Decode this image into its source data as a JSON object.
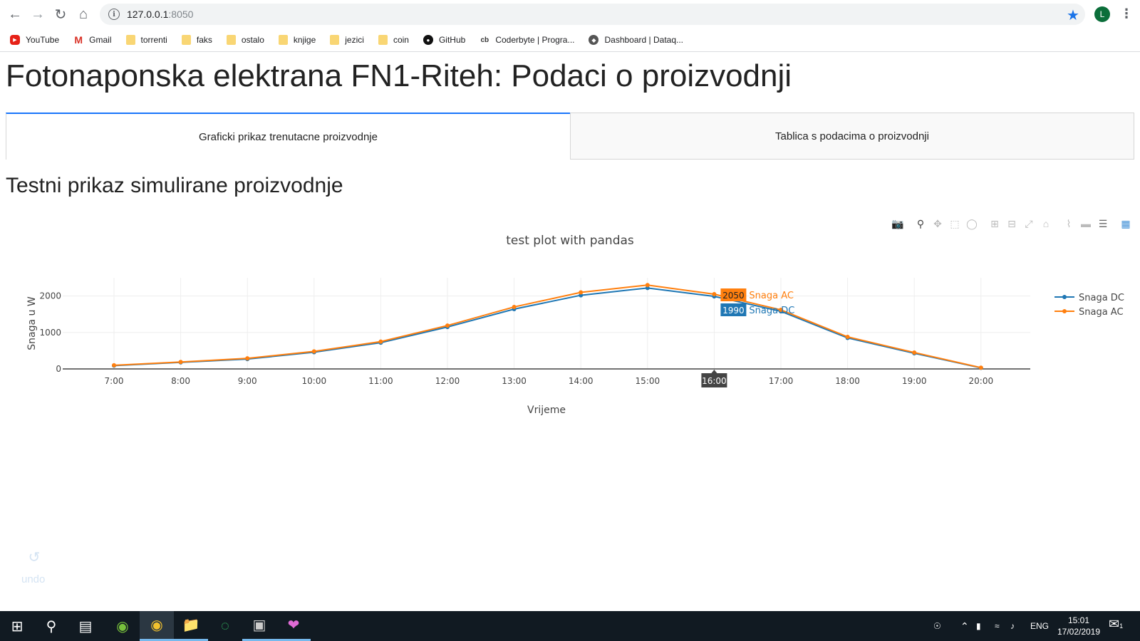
{
  "browser": {
    "url_host": "127.0.0.1",
    "url_port": ":8050",
    "avatar_letter": "L",
    "bookmarks": [
      {
        "label": "YouTube",
        "icon": "youtube-icon"
      },
      {
        "label": "Gmail",
        "icon": "gmail-icon"
      },
      {
        "label": "torrenti",
        "icon": "folder-icon"
      },
      {
        "label": "faks",
        "icon": "folder-icon"
      },
      {
        "label": "ostalo",
        "icon": "folder-icon"
      },
      {
        "label": "knjige",
        "icon": "folder-icon"
      },
      {
        "label": "jezici",
        "icon": "folder-icon"
      },
      {
        "label": "coin",
        "icon": "folder-icon"
      },
      {
        "label": "GitHub",
        "icon": "github-icon"
      },
      {
        "label": "Coderbyte | Progra...",
        "icon": "coderbyte-icon"
      },
      {
        "label": "Dashboard | Dataq...",
        "icon": "dataquest-icon"
      }
    ]
  },
  "page": {
    "title": "Fotonaponska elektrana FN1-Riteh: Podaci o proizvodnji",
    "tabs": [
      {
        "label": "Graficki prikaz trenutacne proizvodnje",
        "active": true
      },
      {
        "label": "Tablica s podacima o proizvodnji",
        "active": false
      }
    ],
    "section_title": "Testni prikaz simulirane proizvodnje",
    "undo_label": "undo"
  },
  "chart_data": {
    "type": "line",
    "title": "test plot with pandas",
    "xlabel": "Vrijeme",
    "ylabel": "Snaga u W",
    "categories": [
      "7:00",
      "8:00",
      "9:00",
      "10:00",
      "11:00",
      "12:00",
      "13:00",
      "14:00",
      "15:00",
      "16:00",
      "17:00",
      "18:00",
      "19:00",
      "20:00"
    ],
    "series": [
      {
        "name": "Snaga DC",
        "color": "#1f77b4",
        "values": [
          90,
          180,
          270,
          460,
          720,
          1150,
          1640,
          2020,
          2220,
          1990,
          1580,
          850,
          430,
          30
        ]
      },
      {
        "name": "Snaga AC",
        "color": "#ff7f0e",
        "values": [
          100,
          190,
          290,
          480,
          750,
          1190,
          1700,
          2100,
          2300,
          2050,
          1620,
          880,
          450,
          35
        ]
      }
    ],
    "yticks": [
      0,
      1000,
      2000
    ],
    "ylim": [
      0,
      2500
    ],
    "grid": true,
    "legend_position": "right",
    "hover": {
      "x": "16:00",
      "labels": [
        {
          "value": "2050",
          "name": "Snaga AC",
          "color": "#ff7f0e"
        },
        {
          "value": "1990",
          "name": "Snaga DC",
          "color": "#1f77b4"
        }
      ]
    }
  },
  "taskbar": {
    "language": "ENG",
    "time": "15:01",
    "date": "17/02/2019",
    "notifications": "1"
  }
}
